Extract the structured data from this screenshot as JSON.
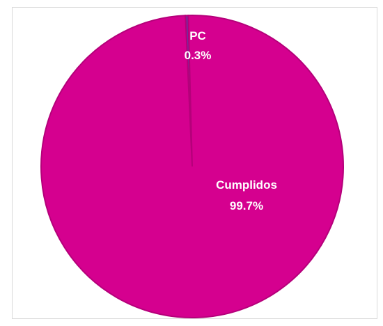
{
  "chart_data": {
    "type": "pie",
    "title": "",
    "slices": [
      {
        "label": "PC",
        "value": 0.3,
        "percent_text": "0.3%",
        "color": "#7030a0"
      },
      {
        "label": "Cumplidos",
        "value": 99.7,
        "percent_text": "99.7%",
        "color": "#d5008f"
      }
    ],
    "legend": "none",
    "border_color": "#d9d9d9"
  }
}
